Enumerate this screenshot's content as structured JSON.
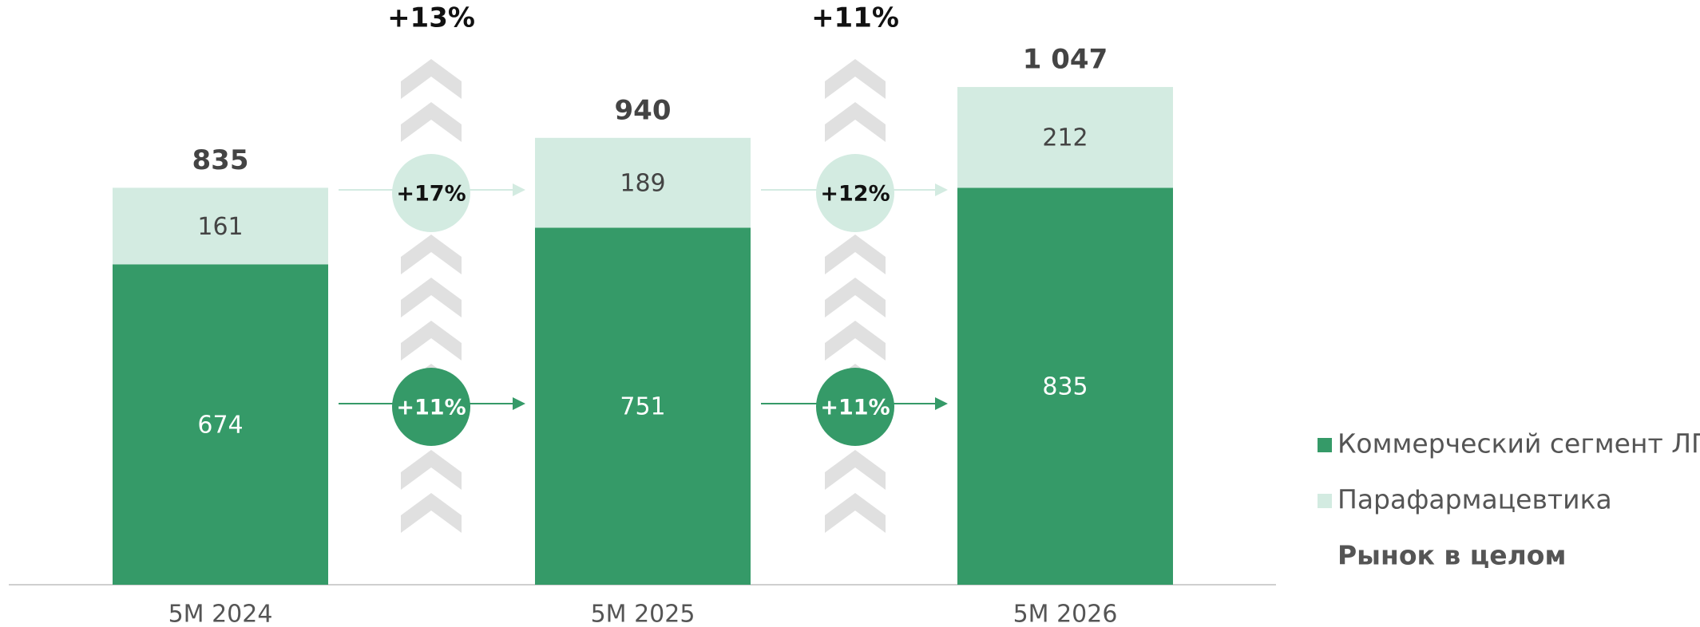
{
  "chart_data": {
    "type": "bar",
    "stacked": true,
    "categories": [
      "5M 2024",
      "5M 2025",
      "5M 2026"
    ],
    "series": [
      {
        "name": "Коммерческий сегмент ЛП",
        "color": "#359a68",
        "values": [
          674,
          751,
          835
        ],
        "growth_labels": [
          "+11%",
          "+11%"
        ]
      },
      {
        "name": "Парафармацевтика",
        "color": "#d3ebe1",
        "values": [
          161,
          189,
          212
        ],
        "growth_labels": [
          "+17%",
          "+12%"
        ]
      }
    ],
    "totals": {
      "name": "Рынок в целом",
      "values": [
        835,
        940,
        1047
      ],
      "value_labels": [
        "835",
        "940",
        "1 047"
      ],
      "growth_labels": [
        "+13%",
        "+11%"
      ]
    },
    "ylim": [
      0,
      1230
    ]
  }
}
